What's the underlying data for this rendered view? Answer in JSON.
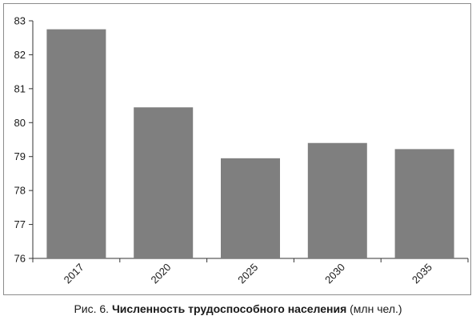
{
  "chart_data": {
    "type": "bar",
    "categories": [
      "2017",
      "2020",
      "2025",
      "2030",
      "2035"
    ],
    "values": [
      82.75,
      80.45,
      78.95,
      79.4,
      79.22
    ],
    "ylim": [
      76,
      83
    ],
    "yticks": [
      "76",
      "77",
      "78",
      "79",
      "80",
      "81",
      "82",
      "83"
    ],
    "grid": false,
    "bar_color": "#7f7f7f",
    "title": "",
    "xlabel": "",
    "ylabel": ""
  },
  "caption": {
    "prefix": "Рис. 6. ",
    "bold": "Численность трудоспособного населения",
    "suffix": " (млн чел.)"
  }
}
